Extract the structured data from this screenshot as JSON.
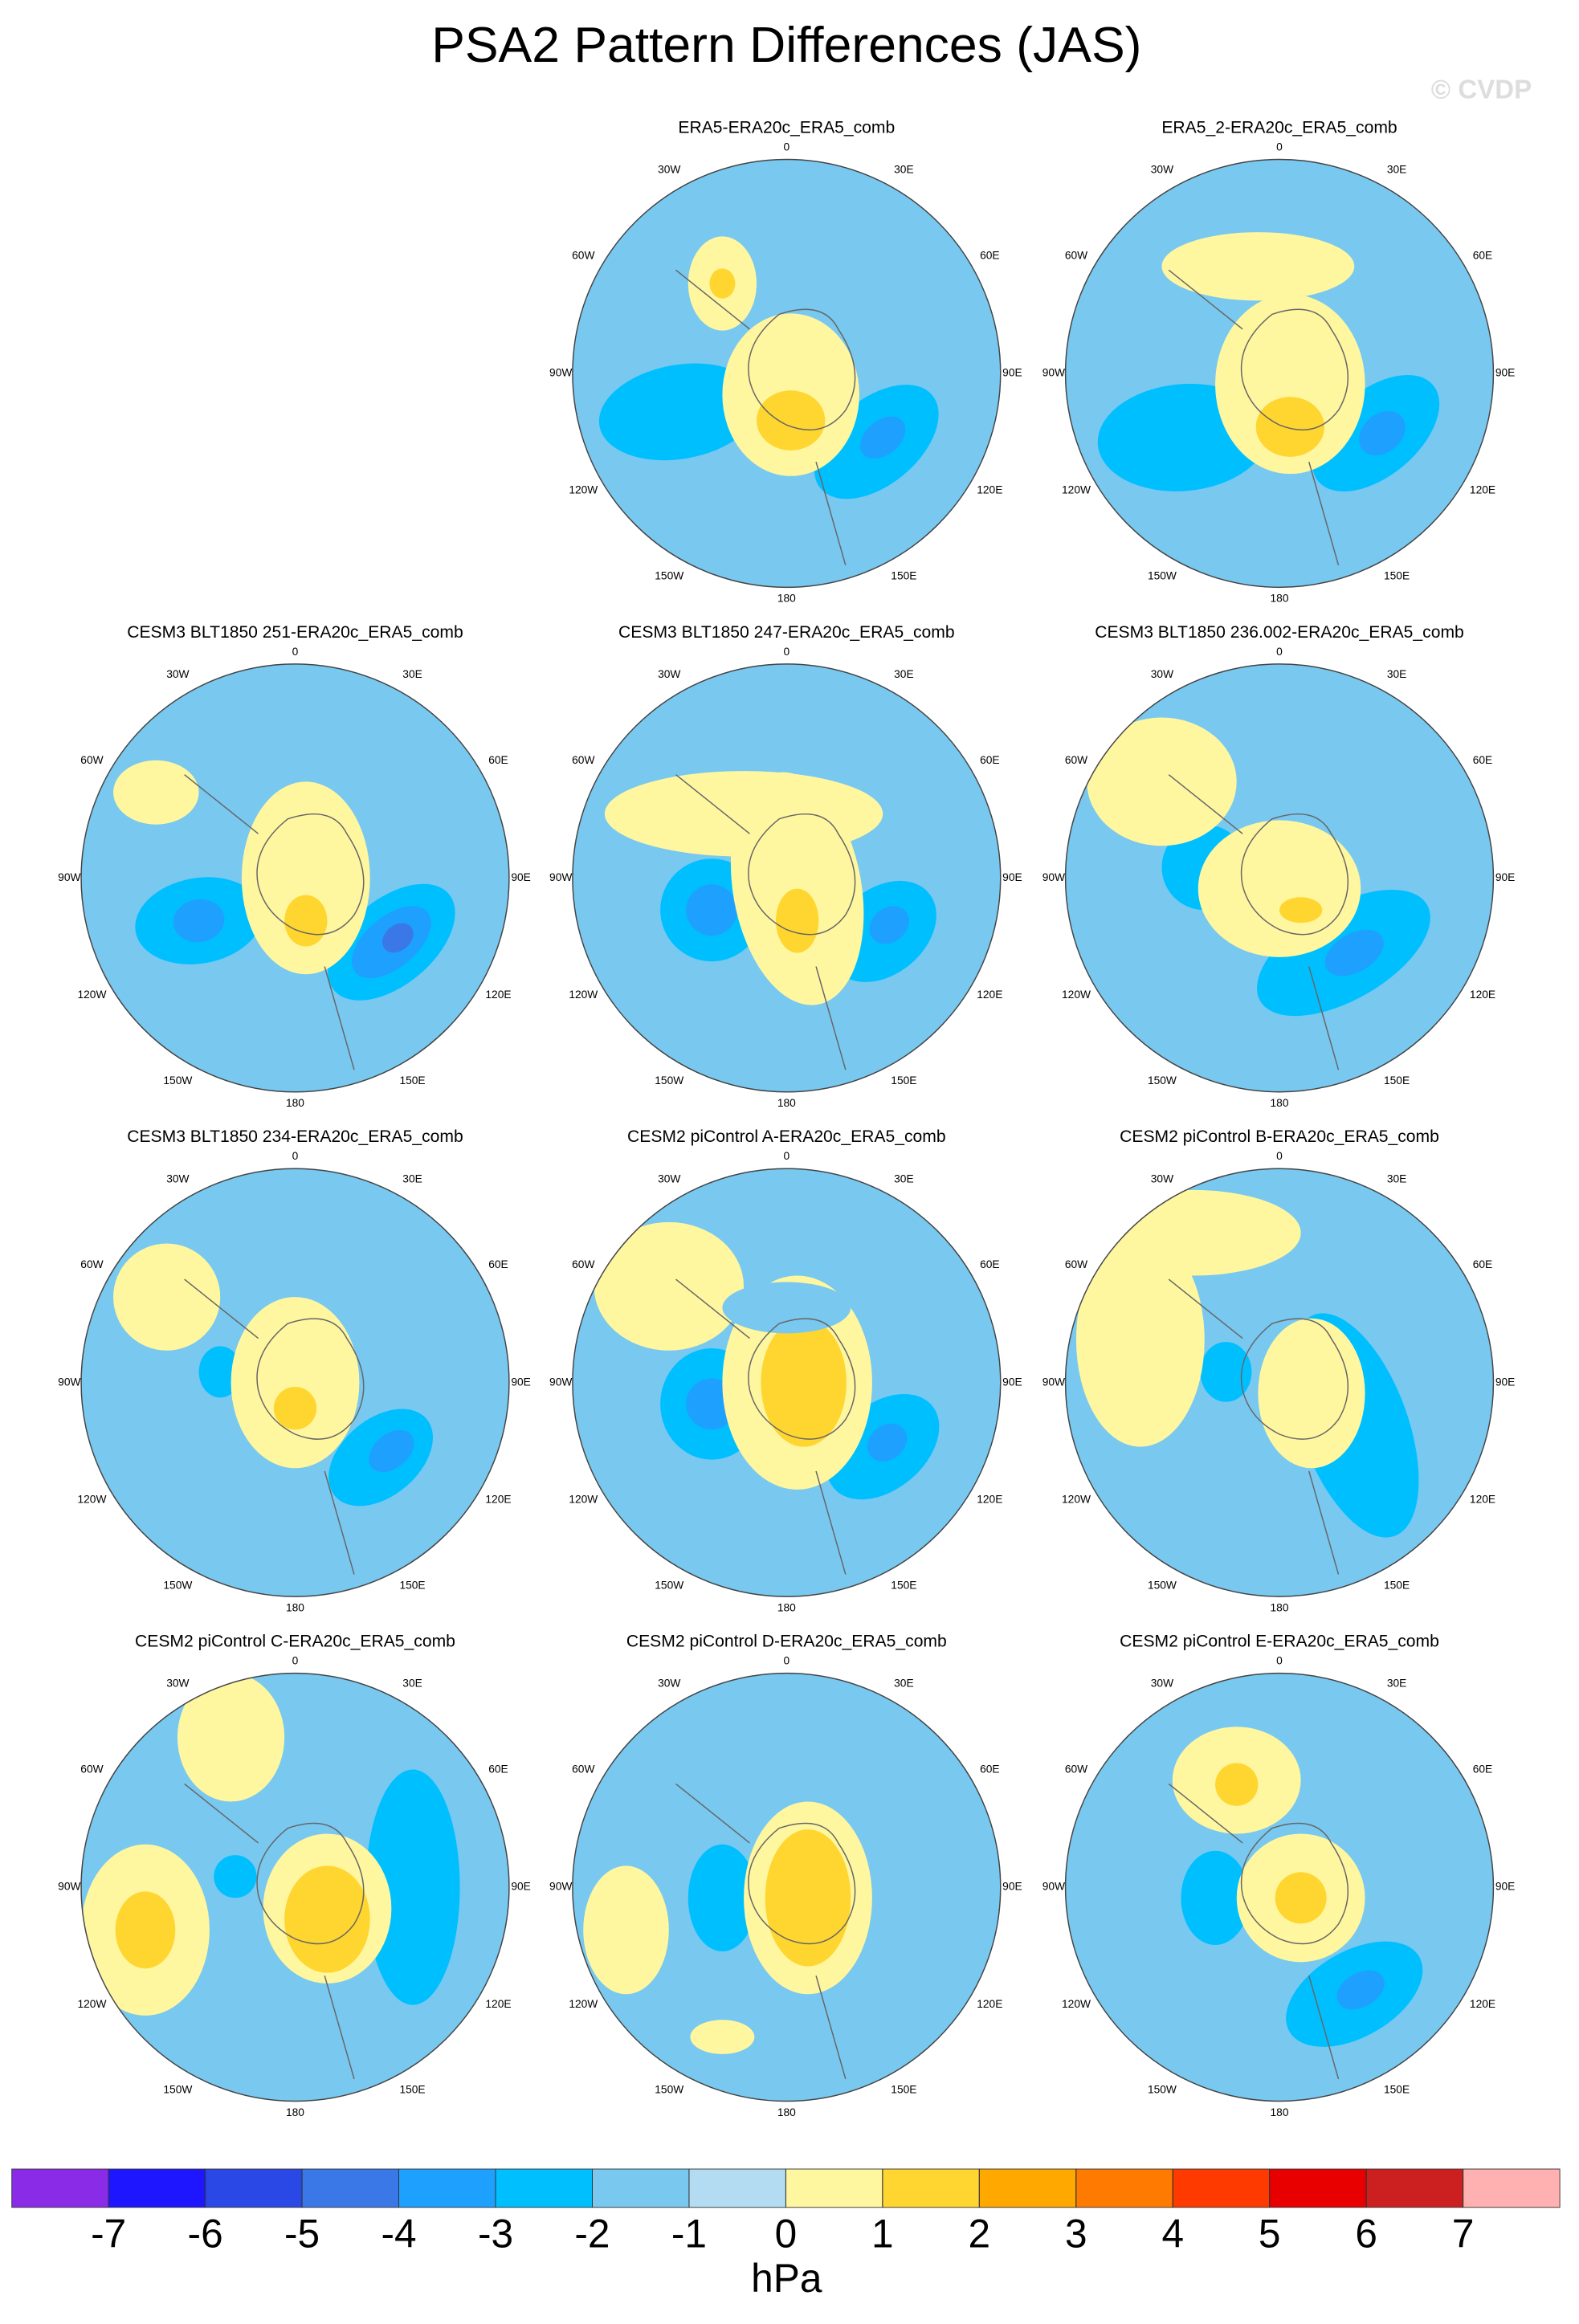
{
  "title": "PSA2 Pattern Differences (JAS)",
  "watermark": "© CVDP",
  "longitude_labels": [
    "0",
    "30E",
    "60E",
    "90E",
    "120E",
    "150E",
    "180",
    "150W",
    "120W",
    "90W",
    "60W",
    "30W"
  ],
  "panels": [
    {
      "title": "ERA5-ERA20c_ERA5_comb"
    },
    {
      "title": "ERA5_2-ERA20c_ERA5_comb"
    },
    {
      "title": "CESM3 BLT1850 251-ERA20c_ERA5_comb"
    },
    {
      "title": "CESM3 BLT1850 247-ERA20c_ERA5_comb"
    },
    {
      "title": "CESM3 BLT1850 236.002-ERA20c_ERA5_comb"
    },
    {
      "title": "CESM3 BLT1850 234-ERA20c_ERA5_comb"
    },
    {
      "title": "CESM2 piControl A-ERA20c_ERA5_comb"
    },
    {
      "title": "CESM2 piControl B-ERA20c_ERA5_comb"
    },
    {
      "title": "CESM2 piControl C-ERA20c_ERA5_comb"
    },
    {
      "title": "CESM2 piControl D-ERA20c_ERA5_comb"
    },
    {
      "title": "CESM2 piControl E-ERA20c_ERA5_comb"
    }
  ],
  "colorbar": {
    "colors": [
      "#8a2be8",
      "#1e16ff",
      "#2a48e6",
      "#3a78e8",
      "#1ea0ff",
      "#00bfff",
      "#78c8f0",
      "#b3dcf2",
      "#fff6a0",
      "#ffd530",
      "#ffa800",
      "#ff7a00",
      "#ff3a00",
      "#e80000",
      "#cc2020",
      "#ffb0b0"
    ],
    "ticks": [
      -7,
      -6,
      -5,
      -4,
      -3,
      -2,
      -1,
      0,
      1,
      2,
      3,
      4,
      5,
      6,
      7
    ],
    "label": "hPa"
  }
}
